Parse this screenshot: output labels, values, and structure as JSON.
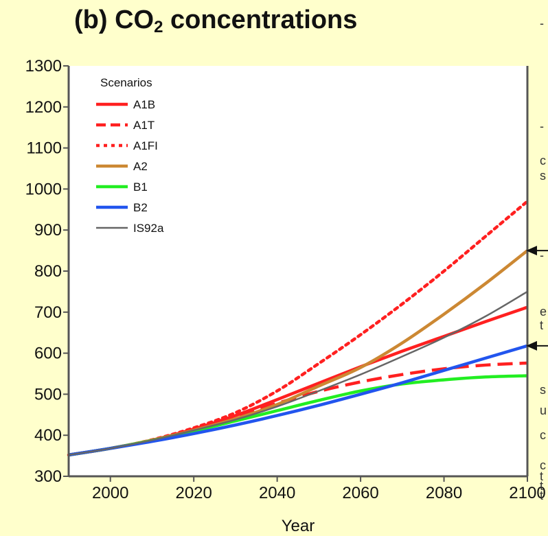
{
  "chart_data": {
    "type": "line",
    "title_prefix": "(b) CO",
    "title_sub": "2",
    "title_suffix": " concentrations",
    "xlabel": "Year",
    "ylabel": "",
    "xlim": [
      1990,
      2100
    ],
    "ylim": [
      300,
      1300
    ],
    "xticks": [
      2000,
      2020,
      2040,
      2060,
      2080,
      2100
    ],
    "yticks": [
      300,
      400,
      500,
      600,
      700,
      800,
      900,
      1000,
      1100,
      1200,
      1300
    ],
    "grid": false,
    "legend_title": "Scenarios",
    "legend_position": "top-left",
    "series": [
      {
        "name": "A1B",
        "color": "#ff2020",
        "style": "solid",
        "x": [
          1990,
          2000,
          2010,
          2020,
          2030,
          2040,
          2050,
          2060,
          2070,
          2080,
          2090,
          2100
        ],
        "y": [
          352,
          368,
          388,
          415,
          448,
          487,
          527,
          567,
          605,
          641,
          677,
          712
        ]
      },
      {
        "name": "A1T",
        "color": "#ff2020",
        "style": "dashed",
        "x": [
          1990,
          2000,
          2010,
          2020,
          2030,
          2040,
          2050,
          2060,
          2070,
          2080,
          2090,
          2100
        ],
        "y": [
          352,
          368,
          388,
          415,
          447,
          478,
          507,
          530,
          548,
          562,
          571,
          576
        ]
      },
      {
        "name": "A1FI",
        "color": "#ff2020",
        "style": "dotted",
        "x": [
          1990,
          2000,
          2010,
          2020,
          2030,
          2040,
          2050,
          2060,
          2070,
          2080,
          2090,
          2100
        ],
        "y": [
          352,
          368,
          389,
          418,
          455,
          508,
          575,
          645,
          720,
          800,
          885,
          970
        ]
      },
      {
        "name": "A2",
        "color": "#cc8833",
        "style": "solid",
        "x": [
          1990,
          2000,
          2010,
          2020,
          2030,
          2040,
          2050,
          2060,
          2070,
          2080,
          2090,
          2100
        ],
        "y": [
          352,
          368,
          388,
          412,
          440,
          475,
          520,
          565,
          625,
          695,
          770,
          850
        ]
      },
      {
        "name": "B1",
        "color": "#22ee22",
        "style": "solid",
        "x": [
          1990,
          2000,
          2010,
          2020,
          2030,
          2040,
          2050,
          2060,
          2070,
          2080,
          2090,
          2100
        ],
        "y": [
          352,
          368,
          387,
          410,
          435,
          460,
          485,
          508,
          525,
          535,
          542,
          545
        ]
      },
      {
        "name": "B2",
        "color": "#2255ee",
        "style": "solid",
        "x": [
          1990,
          2000,
          2010,
          2020,
          2030,
          2040,
          2050,
          2060,
          2070,
          2080,
          2090,
          2100
        ],
        "y": [
          352,
          368,
          385,
          404,
          425,
          448,
          473,
          500,
          528,
          558,
          588,
          618
        ]
      },
      {
        "name": "IS92a",
        "color": "#666666",
        "style": "solid",
        "x": [
          1990,
          2000,
          2010,
          2020,
          2030,
          2040,
          2050,
          2060,
          2070,
          2080,
          2090,
          2100
        ],
        "y": [
          352,
          368,
          388,
          412,
          438,
          470,
          508,
          548,
          592,
          638,
          690,
          750
        ]
      }
    ],
    "annotations": [
      {
        "type": "arrow",
        "target_series": "A2",
        "at_x": 2100,
        "direction": "left"
      },
      {
        "type": "arrow",
        "target_series": "B2",
        "at_x": 2100,
        "direction": "left"
      }
    ],
    "edge_glyphs": [
      "-",
      "-",
      "c",
      "s",
      "-",
      "e",
      "t",
      "s",
      "u",
      "c",
      "c",
      "t",
      "t",
      "t"
    ]
  }
}
